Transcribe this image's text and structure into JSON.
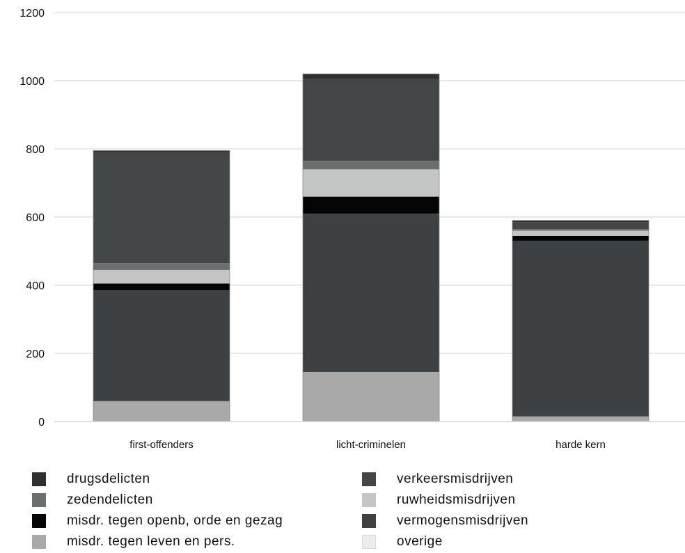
{
  "chart_data": {
    "type": "bar",
    "stacked": true,
    "categories": [
      "first-offenders",
      "licht-criminelen",
      "harde kern"
    ],
    "ylim": [
      0,
      1200
    ],
    "yticks": [
      0,
      200,
      400,
      600,
      800,
      1000,
      1200
    ],
    "grid": true,
    "legend_position": "bottom",
    "series": [
      {
        "name": "misdr. tegen leven en pers.",
        "values": [
          60,
          145,
          15
        ],
        "color": "#a9a9a9"
      },
      {
        "name": "vermogensmisdrijven",
        "values": [
          325,
          465,
          515
        ],
        "color": "#3e4143"
      },
      {
        "name": "misdr. tegen openb, orde en gezag",
        "values": [
          20,
          50,
          15
        ],
        "color": "#050505"
      },
      {
        "name": "ruwheidsmisdrijven",
        "values": [
          40,
          80,
          15
        ],
        "color": "#c4c6c6"
      },
      {
        "name": "zedendelicten",
        "values": [
          20,
          25,
          5
        ],
        "color": "#6a6e6e"
      },
      {
        "name": "verkeersmisdrijven",
        "values": [
          325,
          240,
          20
        ],
        "color": "#434647"
      },
      {
        "name": "drugsdelicten",
        "values": [
          5,
          15,
          5
        ],
        "color": "#2e3032"
      },
      {
        "name": "overige",
        "values": [
          0,
          0,
          0
        ],
        "color": "#ececec"
      }
    ]
  },
  "legend": [
    {
      "label": "drugsdelicten",
      "color": "#2e3032"
    },
    {
      "label": "zedendelicten",
      "color": "#6a6e6e"
    },
    {
      "label": "misdr. tegen openb, orde en gezag",
      "color": "#050505"
    },
    {
      "label": "misdr. tegen leven en pers.",
      "color": "#a9a9a9"
    },
    {
      "label": "verkeersmisdrijven",
      "color": "#434647"
    },
    {
      "label": "ruwheidsmisdrijven",
      "color": "#c4c6c6"
    },
    {
      "label": "vermogensmisdrijven",
      "color": "#3e4143"
    },
    {
      "label": "overige",
      "color": "#ececec"
    }
  ]
}
